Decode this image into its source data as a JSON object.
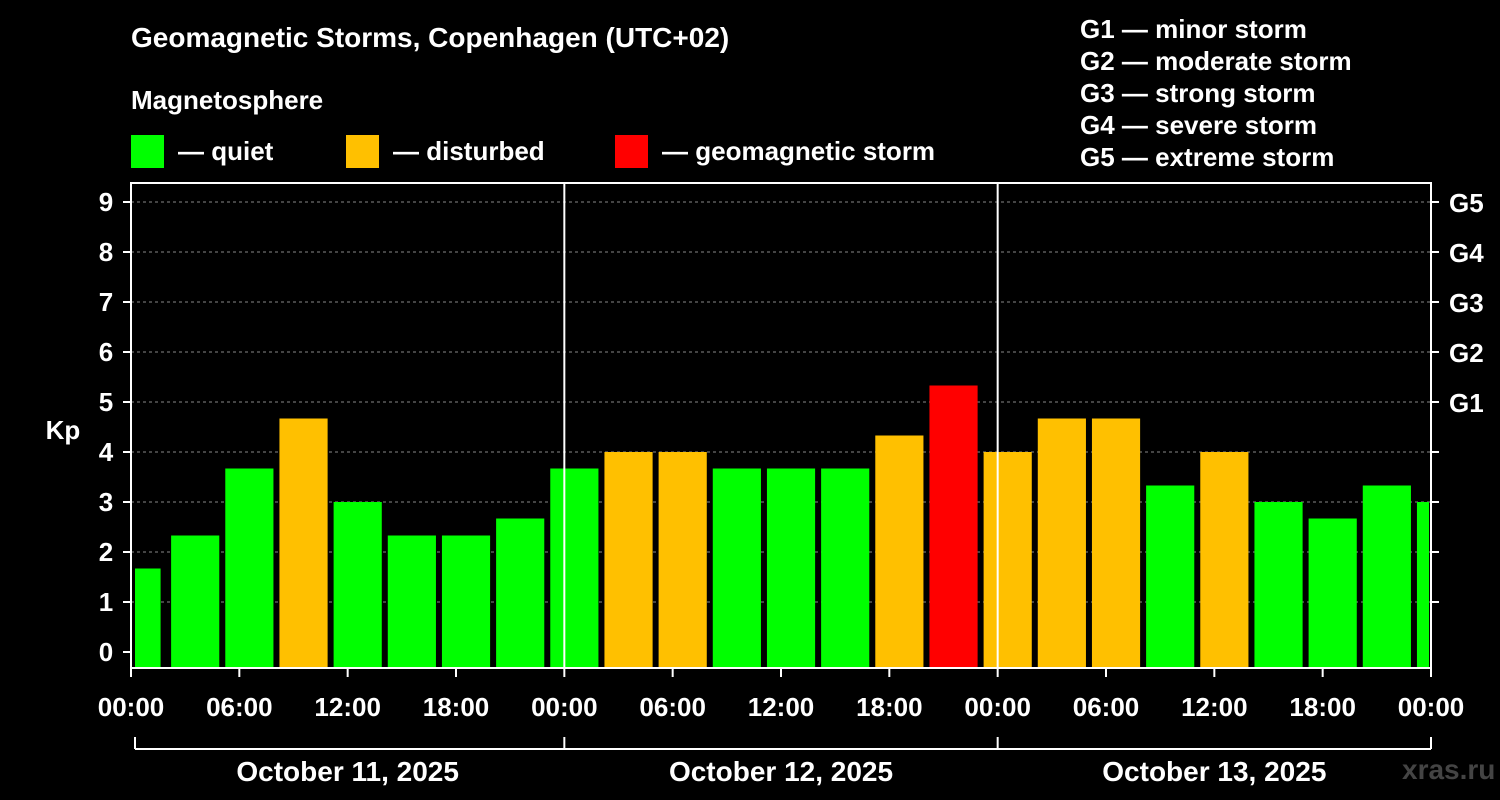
{
  "title": "Geomagnetic Storms, Copenhagen (UTC+02)",
  "legend": {
    "heading": "Magnetosphere",
    "items": [
      {
        "label": "— quiet",
        "color": "#00ff00"
      },
      {
        "label": "— disturbed",
        "color": "#ffc000"
      },
      {
        "label": "— geomagnetic storm",
        "color": "#ff0000"
      }
    ]
  },
  "g_levels": [
    "G1 — minor storm",
    "G2 — moderate storm",
    "G3 — strong storm",
    "G4 — severe storm",
    "G5 — extreme storm"
  ],
  "watermark": "xras.ru",
  "chart_data": {
    "type": "bar",
    "title": "Geomagnetic Storms, Copenhagen (UTC+02)",
    "ylabel": "Kp",
    "ylim": [
      0,
      9
    ],
    "yticks": [
      "0",
      "1",
      "2",
      "3",
      "4",
      "5",
      "6",
      "7",
      "8",
      "9"
    ],
    "right_axis_labels": [
      {
        "kp": 5,
        "label": "G1"
      },
      {
        "kp": 6,
        "label": "G2"
      },
      {
        "kp": 7,
        "label": "G3"
      },
      {
        "kp": 8,
        "label": "G4"
      },
      {
        "kp": 9,
        "label": "G5"
      }
    ],
    "x_hours_total": 72,
    "x_tick_labels": [
      "00:00",
      "06:00",
      "12:00",
      "18:00",
      "00:00",
      "06:00",
      "12:00",
      "18:00",
      "00:00",
      "06:00",
      "12:00",
      "18:00",
      "00:00"
    ],
    "days": [
      "October 11, 2025",
      "October 12, 2025",
      "October 13, 2025"
    ],
    "bars": [
      {
        "start_h": 0,
        "end_h": 1.75,
        "kp": 1.67,
        "level": "quiet"
      },
      {
        "start_h": 2,
        "end_h": 5,
        "kp": 2.33,
        "level": "quiet"
      },
      {
        "start_h": 5,
        "end_h": 8,
        "kp": 3.67,
        "level": "quiet"
      },
      {
        "start_h": 8,
        "end_h": 11,
        "kp": 4.67,
        "level": "disturbed"
      },
      {
        "start_h": 11,
        "end_h": 14,
        "kp": 3.0,
        "level": "quiet"
      },
      {
        "start_h": 14,
        "end_h": 17,
        "kp": 2.33,
        "level": "quiet"
      },
      {
        "start_h": 17,
        "end_h": 20,
        "kp": 2.33,
        "level": "quiet"
      },
      {
        "start_h": 20,
        "end_h": 23,
        "kp": 2.67,
        "level": "quiet"
      },
      {
        "start_h": 23,
        "end_h": 26,
        "kp": 3.67,
        "level": "quiet"
      },
      {
        "start_h": 26,
        "end_h": 29,
        "kp": 4.0,
        "level": "disturbed"
      },
      {
        "start_h": 29,
        "end_h": 32,
        "kp": 4.0,
        "level": "disturbed"
      },
      {
        "start_h": 32,
        "end_h": 35,
        "kp": 3.67,
        "level": "quiet"
      },
      {
        "start_h": 35,
        "end_h": 38,
        "kp": 3.67,
        "level": "quiet"
      },
      {
        "start_h": 38,
        "end_h": 41,
        "kp": 3.67,
        "level": "quiet"
      },
      {
        "start_h": 41,
        "end_h": 44,
        "kp": 4.33,
        "level": "disturbed"
      },
      {
        "start_h": 44,
        "end_h": 47,
        "kp": 5.33,
        "level": "storm"
      },
      {
        "start_h": 47,
        "end_h": 50,
        "kp": 4.0,
        "level": "disturbed"
      },
      {
        "start_h": 50,
        "end_h": 53,
        "kp": 4.67,
        "level": "disturbed"
      },
      {
        "start_h": 53,
        "end_h": 56,
        "kp": 4.67,
        "level": "disturbed"
      },
      {
        "start_h": 56,
        "end_h": 59,
        "kp": 3.33,
        "level": "quiet"
      },
      {
        "start_h": 59,
        "end_h": 62,
        "kp": 4.0,
        "level": "disturbed"
      },
      {
        "start_h": 62,
        "end_h": 65,
        "kp": 3.0,
        "level": "quiet"
      },
      {
        "start_h": 65,
        "end_h": 68,
        "kp": 2.67,
        "level": "quiet"
      },
      {
        "start_h": 68,
        "end_h": 71,
        "kp": 3.33,
        "level": "quiet"
      },
      {
        "start_h": 71,
        "end_h": 72,
        "kp": 3.0,
        "level": "quiet"
      }
    ],
    "level_colors": {
      "quiet": "#00ff00",
      "disturbed": "#ffc000",
      "storm": "#ff0000"
    }
  }
}
